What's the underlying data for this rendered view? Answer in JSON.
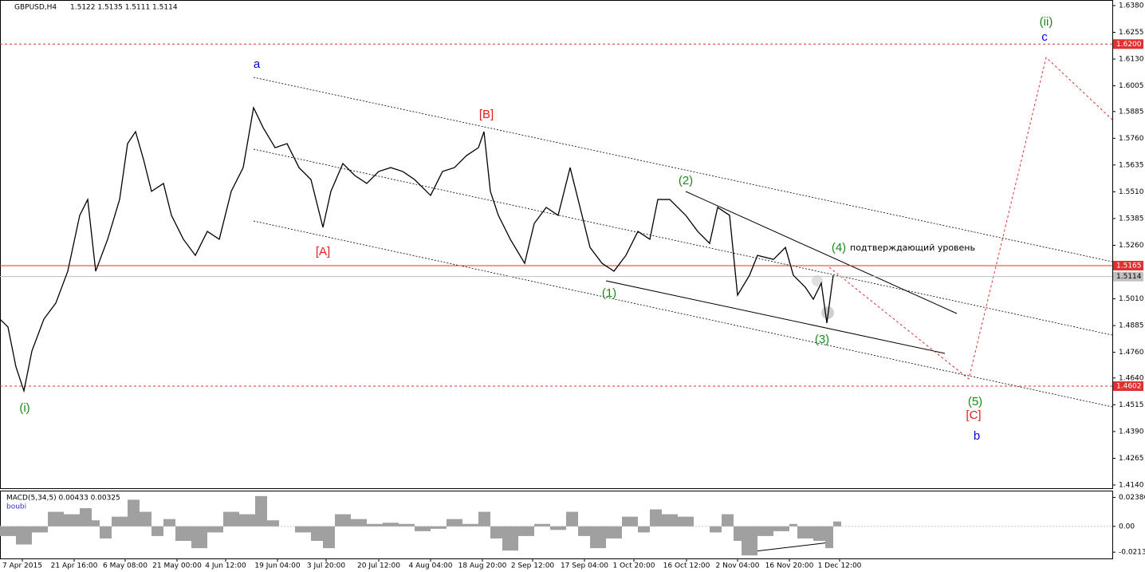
{
  "chart_data": {
    "type": "line",
    "title": "GBPUSD,H4",
    "subtitle": "1.5122 1.5135 1.5111 1.5114",
    "color": "#000000",
    "xlim": [
      0,
      1395
    ],
    "ylim": [
      1.4125,
      1.6406
    ],
    "xticks": [
      {
        "value": 28,
        "label": "7 Apr 2015"
      },
      {
        "value": 93,
        "label": "21 Apr 16:00"
      },
      {
        "value": 157,
        "label": "6 May 08:00"
      },
      {
        "value": 222,
        "label": "21 May 00:00"
      },
      {
        "value": 283,
        "label": "4 Jun 12:00"
      },
      {
        "value": 348,
        "label": "19 Jun 04:00"
      },
      {
        "value": 409,
        "label": "3 Jul 20:00"
      },
      {
        "value": 475,
        "label": "20 Jul 12:00"
      },
      {
        "value": 540,
        "label": "4 Aug 04:00"
      },
      {
        "value": 605,
        "label": "18 Aug 20:00"
      },
      {
        "value": 668,
        "label": "2 Sep 12:00"
      },
      {
        "value": 733,
        "label": "17 Sep 04:00"
      },
      {
        "value": 795,
        "label": "1 Oct 20:00"
      },
      {
        "value": 861,
        "label": "16 Oct 12:00"
      },
      {
        "value": 925,
        "label": "2 Nov 04:00"
      },
      {
        "value": 990,
        "label": "16 Nov 20:00"
      },
      {
        "value": 1053,
        "label": "1 Dec 12:00"
      }
    ],
    "yticks": [
      {
        "value": 1.638,
        "label": "1.6380"
      },
      {
        "value": 1.6255,
        "label": "1.6255"
      },
      {
        "value": 1.613,
        "label": "1.6130"
      },
      {
        "value": 1.6005,
        "label": "1.6005"
      },
      {
        "value": 1.5885,
        "label": "1.5885"
      },
      {
        "value": 1.576,
        "label": "1.5760"
      },
      {
        "value": 1.5635,
        "label": "1.5635"
      },
      {
        "value": 1.551,
        "label": "1.5510"
      },
      {
        "value": 1.5385,
        "label": "1.5385"
      },
      {
        "value": 1.526,
        "label": "1.5260"
      },
      {
        "value": 1.501,
        "label": "1.5010"
      },
      {
        "value": 1.4885,
        "label": "1.4885"
      },
      {
        "value": 1.476,
        "label": "1.4760"
      },
      {
        "value": 1.464,
        "label": "1.4640"
      },
      {
        "value": 1.4515,
        "label": "1.4515"
      },
      {
        "value": 1.439,
        "label": "1.4390"
      },
      {
        "value": 1.4265,
        "label": "1.4265"
      },
      {
        "value": 1.414,
        "label": "1.4140"
      }
    ],
    "levels": [
      {
        "value": 1.62,
        "label": "1.6200",
        "color": "#e03030",
        "style": "dashed"
      },
      {
        "value": 1.5165,
        "label": "1.5165",
        "color": "#e03030",
        "style": "solid"
      },
      {
        "value": 1.5114,
        "label": "1.5114",
        "color": "#c0c0c0",
        "style": "solid"
      },
      {
        "value": 1.4602,
        "label": "1.4602",
        "color": "#e03030",
        "style": "dashed"
      }
    ],
    "x": [
      0,
      10,
      20,
      30,
      40,
      55,
      70,
      85,
      100,
      110,
      120,
      135,
      150,
      160,
      170,
      180,
      190,
      205,
      215,
      230,
      245,
      260,
      275,
      290,
      305,
      318,
      330,
      345,
      360,
      375,
      390,
      405,
      415,
      430,
      445,
      460,
      475,
      490,
      505,
      520,
      540,
      555,
      570,
      585,
      600,
      607,
      615,
      625,
      640,
      658,
      670,
      685,
      700,
      715,
      725,
      740,
      755,
      770,
      785,
      800,
      815,
      825,
      840,
      860,
      875,
      890,
      900,
      915,
      925,
      940,
      950,
      970,
      985,
      995,
      1010,
      1020,
      1030,
      1037,
      1045
    ],
    "values": [
      1.4915,
      1.4878,
      1.4692,
      1.458,
      1.4766,
      1.4915,
      1.499,
      1.5139,
      1.54,
      1.5474,
      1.5139,
      1.5288,
      1.5474,
      1.5735,
      1.5791,
      1.5661,
      1.5512,
      1.5549,
      1.54,
      1.5288,
      1.5213,
      1.5325,
      1.5288,
      1.5512,
      1.5623,
      1.5903,
      1.581,
      1.5716,
      1.5735,
      1.5623,
      1.5567,
      1.5344,
      1.5512,
      1.5642,
      1.5586,
      1.5549,
      1.5605,
      1.5623,
      1.5605,
      1.5567,
      1.5493,
      1.5605,
      1.5623,
      1.5679,
      1.5716,
      1.5791,
      1.5512,
      1.54,
      1.5288,
      1.5176,
      1.5362,
      1.5437,
      1.54,
      1.5623,
      1.5474,
      1.525,
      1.5176,
      1.5139,
      1.5213,
      1.5325,
      1.5288,
      1.5474,
      1.5474,
      1.54,
      1.5325,
      1.5269,
      1.5437,
      1.54,
      1.5027,
      1.512,
      1.5213,
      1.5194,
      1.525,
      1.512,
      1.5064,
      1.5008,
      1.5083,
      1.4897,
      1.512
    ],
    "annotations": [
      {
        "text": "a",
        "color": "#0000dd"
      },
      {
        "text": "[B]",
        "color": "#e02020"
      },
      {
        "text": "[A]",
        "color": "#e02020"
      },
      {
        "text": "(2)",
        "color": "#1a8a1a"
      },
      {
        "text": "(1)",
        "color": "#1a8a1a"
      },
      {
        "text": "(4)",
        "color": "#1a8a1a"
      },
      {
        "text": "подтверждающий уровень",
        "color": "#000000"
      },
      {
        "text": "(3)",
        "color": "#1a8a1a"
      },
      {
        "text": "(5)",
        "color": "#1a8a1a"
      },
      {
        "text": "[C]",
        "color": "#e02020"
      },
      {
        "text": "b",
        "color": "#0000dd"
      },
      {
        "text": "(ii)",
        "color": "#1a8a1a"
      },
      {
        "text": "c",
        "color": "#0000dd"
      },
      {
        "text": "(i)",
        "color": "#1a8a1a"
      }
    ],
    "indicator": {
      "type": "bar",
      "title": "MACD(5,34,5) 0.00433 0.00325",
      "subtitle": "boubi",
      "color": "#a0a0a0",
      "ylim": [
        -0.0265,
        0.0295
      ],
      "yticks": [
        {
          "value": 0.02386,
          "label": "0.02386"
        },
        {
          "value": 0,
          "label": "0.00"
        },
        {
          "value": -0.02132,
          "label": "-0.02132"
        }
      ],
      "x": [
        0,
        20,
        40,
        60,
        80,
        100,
        115,
        125,
        140,
        160,
        175,
        190,
        205,
        220,
        240,
        260,
        280,
        300,
        320,
        335,
        350,
        370,
        390,
        405,
        420,
        440,
        460,
        480,
        500,
        520,
        540,
        560,
        580,
        600,
        615,
        630,
        650,
        670,
        690,
        710,
        725,
        740,
        760,
        780,
        800,
        815,
        830,
        850,
        870,
        890,
        905,
        920,
        930,
        950,
        970,
        990,
        1000,
        1020,
        1035,
        1045
      ],
      "values": [
        -0.008,
        -0.015,
        -0.005,
        0.012,
        0.01,
        0.015,
        0.005,
        -0.01,
        0.008,
        0.022,
        0.012,
        -0.008,
        0.006,
        -0.012,
        -0.018,
        -0.005,
        0.012,
        0.01,
        0.025,
        0.005,
        0,
        -0.005,
        -0.012,
        -0.018,
        0.01,
        0.006,
        0.002,
        0.003,
        0.002,
        -0.004,
        -0.002,
        0.006,
        0.002,
        0.012,
        -0.01,
        -0.02,
        -0.008,
        0.002,
        -0.003,
        0.012,
        -0.008,
        -0.018,
        -0.01,
        0.008,
        -0.005,
        0.014,
        0.01,
        0.008,
        0,
        -0.005,
        0.01,
        -0.012,
        -0.024,
        -0.008,
        -0.004,
        0.002,
        -0.01,
        -0.012,
        -0.018,
        0.004
      ]
    }
  }
}
